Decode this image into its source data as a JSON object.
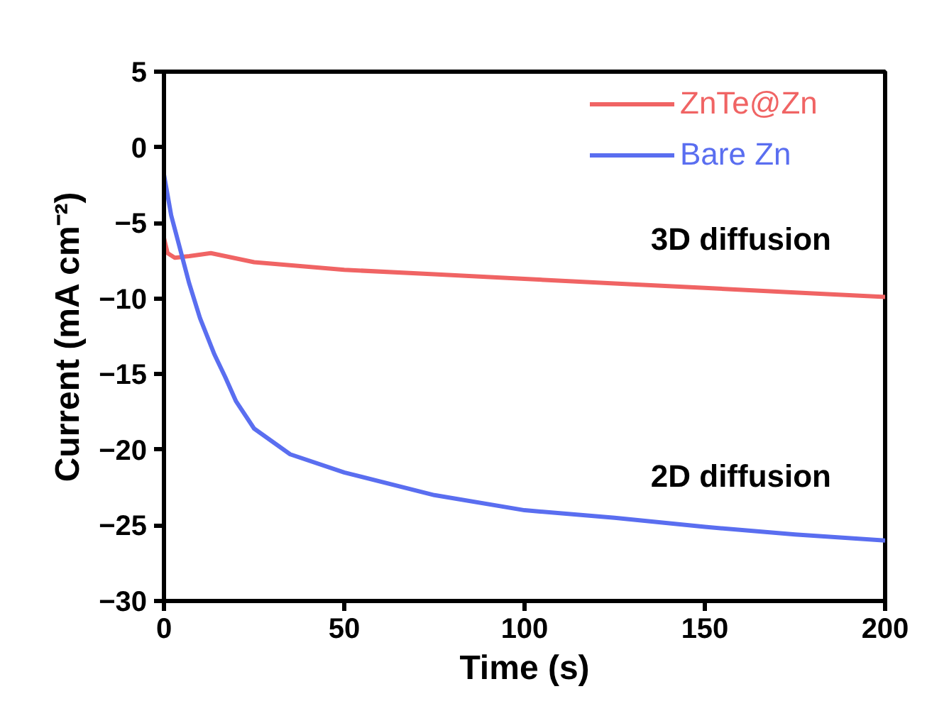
{
  "chart_data": {
    "type": "line",
    "xlabel": "Time (s)",
    "ylabel": "Current (mA cm⁻²)",
    "xlim": [
      0,
      200
    ],
    "xticks": [
      0,
      50,
      100,
      150,
      200
    ],
    "ylim": [
      -30,
      5
    ],
    "yticks": [
      5,
      0,
      -5,
      -10,
      -15,
      -20,
      -25,
      -30
    ],
    "grid": false,
    "legend": "top right",
    "marker": "none",
    "line_style": "solid",
    "series": [
      {
        "name": "ZnTe@Zn",
        "color": "#f06464",
        "x": [
          0,
          1,
          3,
          7,
          13,
          25,
          50,
          75,
          100,
          125,
          150,
          175,
          200
        ],
        "values": [
          -6.0,
          -7.0,
          -7.3,
          -7.2,
          -7.0,
          -7.6,
          -8.1,
          -8.4,
          -8.7,
          -9.0,
          -9.3,
          -9.6,
          -9.9
        ]
      },
      {
        "name": "Bare Zn",
        "color": "#5a6ef0",
        "x": [
          0,
          2,
          4,
          7,
          10,
          14,
          17,
          20,
          25,
          35,
          50,
          75,
          100,
          125,
          150,
          175,
          200
        ],
        "values": [
          -1.8,
          -4.5,
          -6.3,
          -9.0,
          -11.3,
          -13.7,
          -15.2,
          -16.8,
          -18.6,
          -20.3,
          -21.5,
          -23.0,
          -24.0,
          -24.5,
          -25.1,
          -25.6,
          -26.0
        ]
      }
    ],
    "annotations": [
      "3D diffusion",
      "2D diffusion"
    ]
  }
}
